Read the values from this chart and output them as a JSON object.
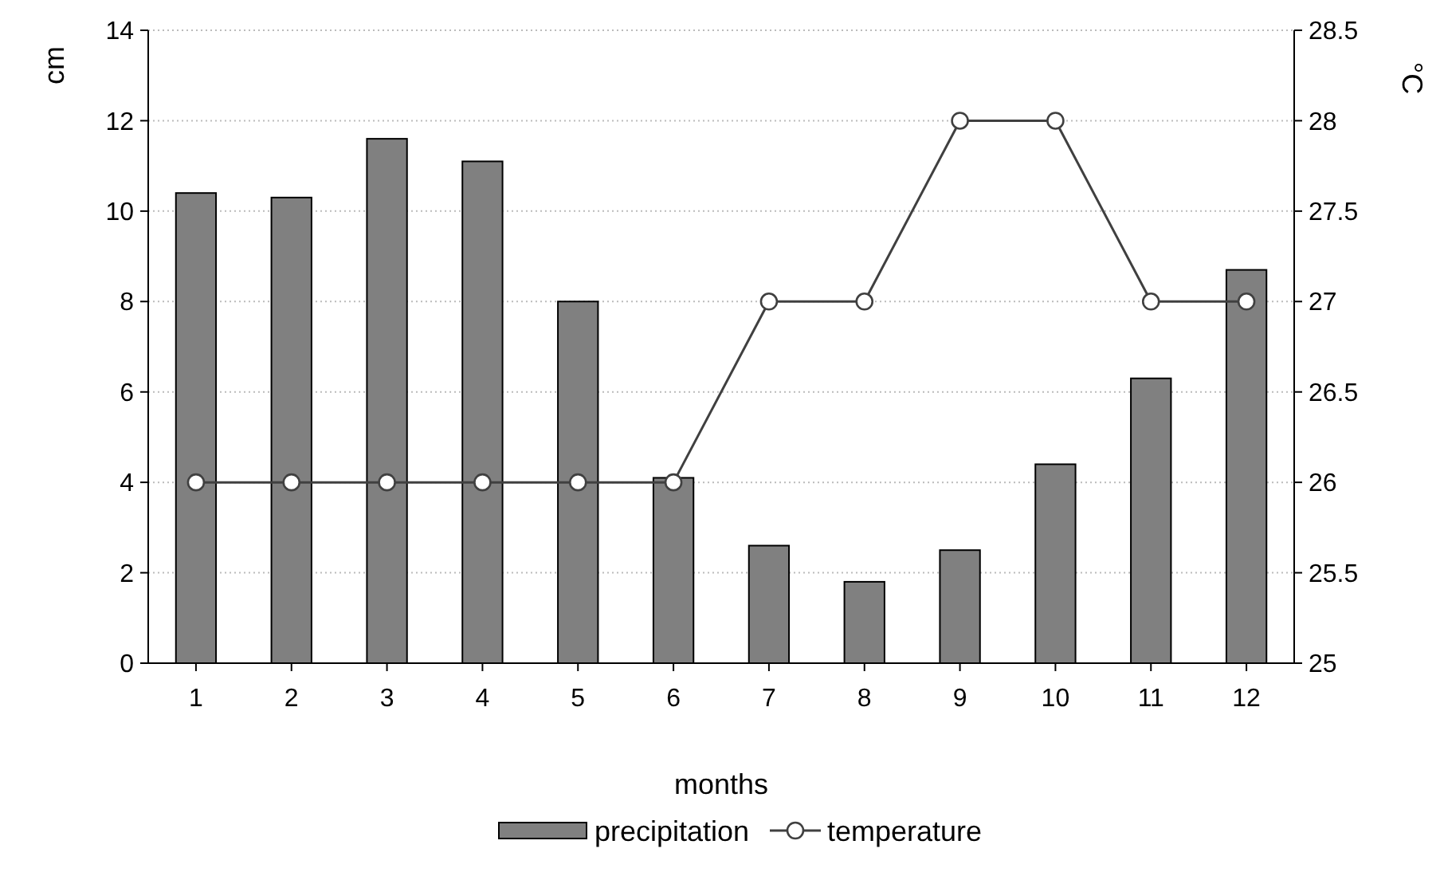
{
  "chart_data": {
    "type": "bar",
    "xlabel": "months",
    "ylabel": "cm",
    "y2label": "°C",
    "categories": [
      "1",
      "2",
      "3",
      "4",
      "5",
      "6",
      "7",
      "8",
      "9",
      "10",
      "11",
      "12"
    ],
    "series": [
      {
        "name": "precipitation",
        "color": "#808080",
        "values": [
          10.4,
          10.3,
          11.6,
          11.1,
          8.0,
          4.1,
          2.6,
          1.8,
          2.5,
          4.4,
          6.3,
          8.7
        ]
      },
      {
        "name": "temperature",
        "type": "line",
        "axis": "y2",
        "color": "#404040",
        "marker": "circle",
        "values": [
          26,
          26,
          26,
          26,
          26,
          26,
          27,
          27,
          28,
          28,
          27,
          27
        ]
      }
    ],
    "ylim": [
      0,
      14
    ],
    "yticks": [
      0,
      2,
      4,
      6,
      8,
      10,
      12,
      14
    ],
    "y2lim": [
      25,
      28.5
    ],
    "y2ticks": [
      25,
      25.5,
      26,
      26.5,
      27,
      27.5,
      28,
      28.5
    ],
    "grid": "y",
    "legend": "bottom"
  }
}
